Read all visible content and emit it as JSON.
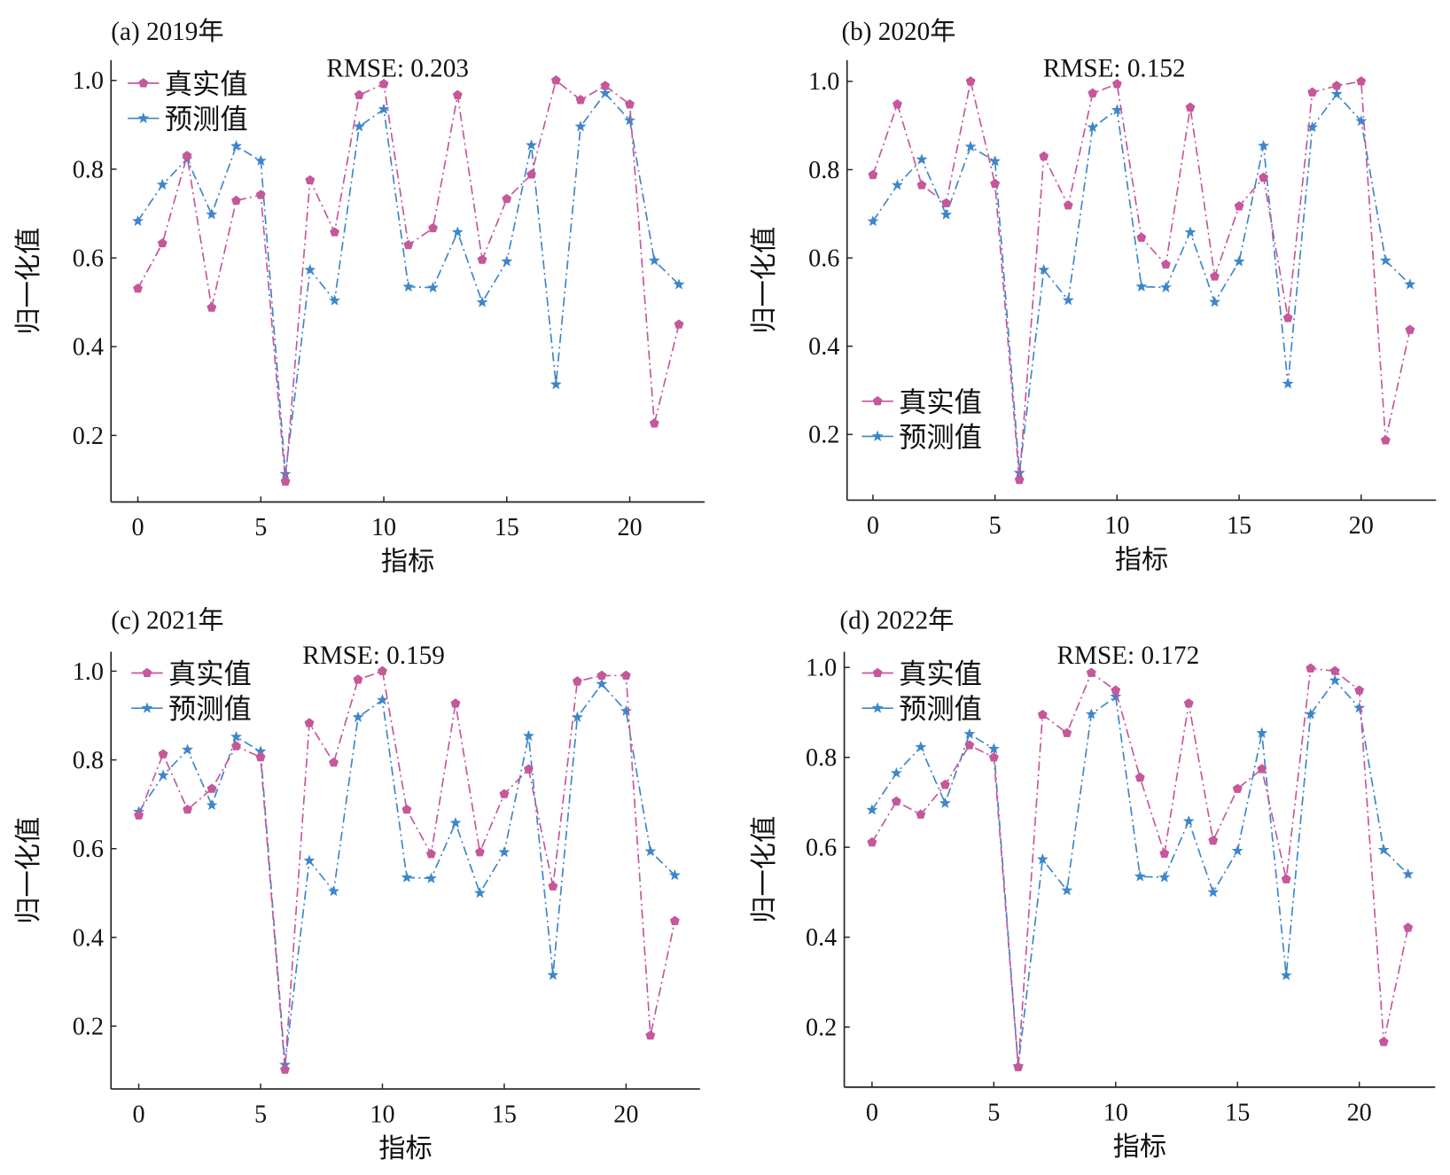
{
  "colors": {
    "real": "#c5579a",
    "pred": "#3d86c9",
    "axis": "#222222"
  },
  "chart_data": [
    {
      "type": "line",
      "title": "(a) 2019年",
      "annotation": "RMSE: 0.203",
      "xlabel": "指标",
      "ylabel": "归一化值",
      "xlim": [
        -1,
        23
      ],
      "ylim": [
        0.05,
        1.05
      ],
      "xticks": [
        "0",
        "5",
        "10",
        "15",
        "20"
      ],
      "yticks": [
        "0.2",
        "0.4",
        "0.6",
        "0.8",
        "1.0"
      ],
      "legend_position": "top-left",
      "x": [
        0,
        1,
        2,
        3,
        4,
        5,
        6,
        7,
        8,
        9,
        10,
        11,
        12,
        13,
        14,
        15,
        16,
        17,
        18,
        19,
        20,
        21,
        22
      ],
      "series": [
        {
          "name": "真实值",
          "values": [
            0.531,
            0.633,
            0.83,
            0.488,
            0.729,
            0.742,
            0.096,
            0.775,
            0.658,
            0.967,
            0.992,
            0.629,
            0.667,
            0.967,
            0.596,
            0.733,
            0.788,
            1.0,
            0.956,
            0.988,
            0.946,
            0.227,
            0.45
          ]
        },
        {
          "name": "预测值",
          "values": [
            0.683,
            0.765,
            0.823,
            0.698,
            0.852,
            0.819,
            0.113,
            0.573,
            0.504,
            0.896,
            0.935,
            0.535,
            0.533,
            0.658,
            0.5,
            0.592,
            0.854,
            0.315,
            0.896,
            0.971,
            0.91,
            0.594,
            0.54
          ]
        }
      ]
    },
    {
      "type": "line",
      "title": "(b) 2020年",
      "annotation": "RMSE: 0.152",
      "xlabel": "指标",
      "ylabel": "归一化值",
      "xlim": [
        -1,
        23
      ],
      "ylim": [
        0.05,
        1.05
      ],
      "xticks": [
        "0",
        "5",
        "10",
        "15",
        "20"
      ],
      "yticks": [
        "0.2",
        "0.4",
        "0.6",
        "0.8",
        "1.0"
      ],
      "legend_position": "bottom-left",
      "x": [
        0,
        1,
        2,
        3,
        4,
        5,
        6,
        7,
        8,
        9,
        10,
        11,
        12,
        13,
        14,
        15,
        16,
        17,
        18,
        19,
        20,
        21,
        22
      ],
      "series": [
        {
          "name": "真实值",
          "values": [
            0.788,
            0.948,
            0.765,
            0.724,
            1.0,
            0.768,
            0.097,
            0.83,
            0.719,
            0.973,
            0.994,
            0.646,
            0.585,
            0.941,
            0.558,
            0.717,
            0.782,
            0.464,
            0.975,
            0.99,
            1.0,
            0.187,
            0.437
          ]
        },
        {
          "name": "预测值",
          "values": [
            0.683,
            0.765,
            0.823,
            0.698,
            0.852,
            0.819,
            0.113,
            0.573,
            0.504,
            0.896,
            0.935,
            0.535,
            0.533,
            0.658,
            0.5,
            0.592,
            0.854,
            0.315,
            0.896,
            0.971,
            0.91,
            0.594,
            0.54
          ]
        }
      ]
    },
    {
      "type": "line",
      "title": "(c) 2021年",
      "annotation": "RMSE: 0.159",
      "xlabel": "指标",
      "ylabel": "归一化值",
      "xlim": [
        -1,
        23
      ],
      "ylim": [
        0.05,
        1.05
      ],
      "xticks": [
        "0",
        "5",
        "10",
        "15",
        "20"
      ],
      "yticks": [
        "0.2",
        "0.4",
        "0.6",
        "0.8",
        "1.0"
      ],
      "legend_position": "top-left",
      "x": [
        0,
        1,
        2,
        3,
        4,
        5,
        6,
        7,
        8,
        9,
        10,
        11,
        12,
        13,
        14,
        15,
        16,
        17,
        18,
        19,
        20,
        21,
        22
      ],
      "series": [
        {
          "name": "真实值",
          "values": [
            0.675,
            0.813,
            0.688,
            0.735,
            0.831,
            0.806,
            0.102,
            0.883,
            0.794,
            0.981,
            1.0,
            0.688,
            0.588,
            0.927,
            0.592,
            0.723,
            0.779,
            0.515,
            0.977,
            0.99,
            0.99,
            0.179,
            0.437
          ]
        },
        {
          "name": "预测值",
          "values": [
            0.683,
            0.765,
            0.823,
            0.698,
            0.852,
            0.819,
            0.113,
            0.573,
            0.504,
            0.896,
            0.935,
            0.535,
            0.533,
            0.658,
            0.5,
            0.592,
            0.854,
            0.315,
            0.896,
            0.971,
            0.91,
            0.594,
            0.54
          ]
        }
      ]
    },
    {
      "type": "line",
      "title": "(d) 2022年",
      "annotation": "RMSE: 0.172",
      "xlabel": "指标",
      "ylabel": "归一化值",
      "xlim": [
        -1,
        23
      ],
      "ylim": [
        0.05,
        1.05
      ],
      "xticks": [
        "0",
        "5",
        "10",
        "15",
        "20"
      ],
      "yticks": [
        "0.2",
        "0.4",
        "0.6",
        "0.8",
        "1.0"
      ],
      "legend_position": "top-left",
      "x": [
        0,
        1,
        2,
        3,
        4,
        5,
        6,
        7,
        8,
        9,
        10,
        11,
        12,
        13,
        14,
        15,
        16,
        17,
        18,
        19,
        20,
        21,
        22
      ],
      "series": [
        {
          "name": "真实值",
          "values": [
            0.611,
            0.702,
            0.673,
            0.739,
            0.827,
            0.8,
            0.111,
            0.895,
            0.854,
            0.988,
            0.949,
            0.755,
            0.586,
            0.92,
            0.615,
            0.73,
            0.774,
            0.529,
            0.998,
            0.992,
            0.949,
            0.167,
            0.421
          ]
        },
        {
          "name": "预测值",
          "values": [
            0.683,
            0.765,
            0.823,
            0.698,
            0.852,
            0.819,
            0.113,
            0.573,
            0.504,
            0.896,
            0.935,
            0.535,
            0.533,
            0.658,
            0.5,
            0.592,
            0.854,
            0.315,
            0.896,
            0.971,
            0.91,
            0.594,
            0.54
          ]
        }
      ]
    }
  ]
}
